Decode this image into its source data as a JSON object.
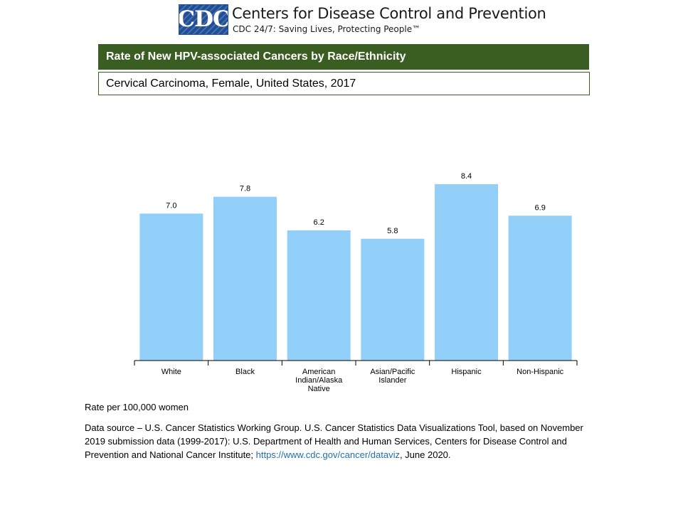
{
  "header": {
    "logo_text": "CDC",
    "org_name": "Centers for Disease Control and Prevention",
    "tagline": "CDC 24/7: Saving Lives, Protecting People™"
  },
  "title": "Rate of New HPV-associated Cancers by Race/Ethnicity",
  "subtitle": "Cervical Carcinoma, Female, United States, 2017",
  "footer": {
    "rate_note": "Rate per 100,000 women",
    "source_text": "Data source – U.S. Cancer Statistics Working Group. U.S. Cancer Statistics Data Visualizations Tool, based on November 2019 submission data (1999-2017): U.S. Department of Health and Human Services, Centers for Disease Control and Prevention and National Cancer Institute; ",
    "source_link": "https://www.cdc.gov/cancer/dataviz",
    "source_suffix": ", June 2020."
  },
  "colors": {
    "bar": "#92d0fa",
    "title_bar": "#3a5e22",
    "logo": "#1f4e96",
    "link": "#1f6fb2"
  },
  "chart_data": {
    "type": "bar",
    "categories": [
      [
        "White"
      ],
      [
        "Black"
      ],
      [
        "American",
        "Indian/Alaska",
        "Native"
      ],
      [
        "Asian/Pacific",
        "Islander"
      ],
      [
        "Hispanic"
      ],
      [
        "Non-Hispanic"
      ]
    ],
    "values": [
      7.0,
      7.8,
      6.2,
      5.8,
      8.4,
      6.9
    ],
    "data_labels": [
      "7.0",
      "7.8",
      "6.2",
      "5.8",
      "8.4",
      "6.9"
    ],
    "ylim": [
      0,
      8.4
    ],
    "grid": false,
    "legend": "none"
  }
}
